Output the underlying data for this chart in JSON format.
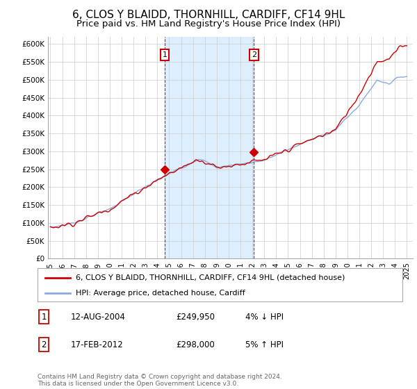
{
  "title": "6, CLOS Y BLAIDD, THORNHILL, CARDIFF, CF14 9HL",
  "subtitle": "Price paid vs. HM Land Registry's House Price Index (HPI)",
  "title_fontsize": 11,
  "subtitle_fontsize": 9.5,
  "ylabel_ticks": [
    "£0",
    "£50K",
    "£100K",
    "£150K",
    "£200K",
    "£250K",
    "£300K",
    "£350K",
    "£400K",
    "£450K",
    "£500K",
    "£550K",
    "£600K"
  ],
  "ytick_values": [
    0,
    50000,
    100000,
    150000,
    200000,
    250000,
    300000,
    350000,
    400000,
    450000,
    500000,
    550000,
    600000
  ],
  "ylim": [
    0,
    620000
  ],
  "year_start": 1995,
  "year_end": 2025,
  "hpi_color": "#88aadd",
  "price_color": "#cc0000",
  "marker_color": "#cc0000",
  "sale1_year": 2004.62,
  "sale1_price": 249950,
  "sale2_year": 2012.12,
  "sale2_price": 298000,
  "legend_line1": "6, CLOS Y BLAIDD, THORNHILL, CARDIFF, CF14 9HL (detached house)",
  "legend_line2": "HPI: Average price, detached house, Cardiff",
  "footnote": "Contains HM Land Registry data © Crown copyright and database right 2024.\nThis data is licensed under the Open Government Licence v3.0.",
  "grid_color": "#cccccc",
  "shaded_region_color": "#ddeeff",
  "border_color": "#aaaaaa"
}
